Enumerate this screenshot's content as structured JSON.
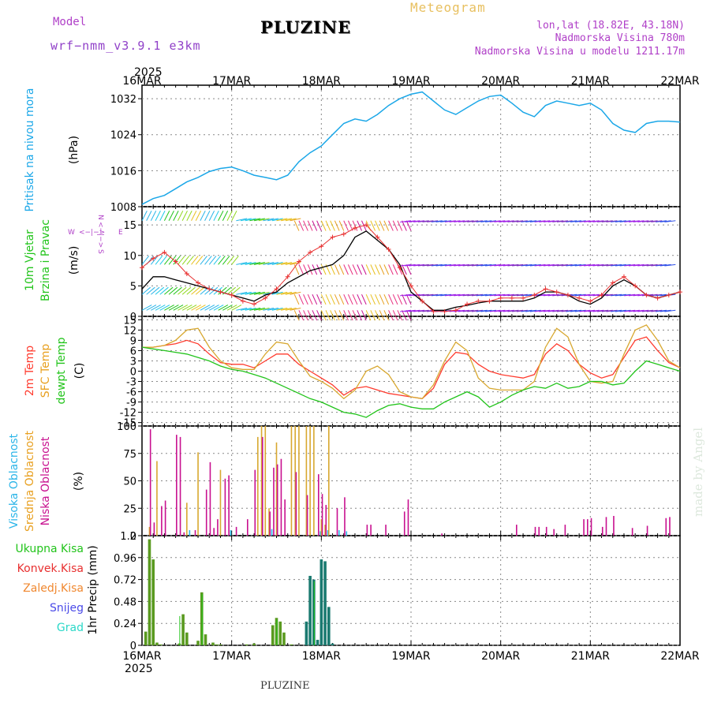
{
  "header": {
    "title": "PLUZINE",
    "model_label": "Model",
    "model_name": "wrf−nmm_v3.9.1  e3km",
    "meteogram": "Meteogram",
    "lonlat": "lon,lat (18.82E, 43.18N)",
    "elevation": "Nadmorska Visina 780m",
    "model_elevation": "Nadmorska Visina u modelu 1211.17m",
    "footer": "PLUZINE",
    "made_by": "made by Angel"
  },
  "chart_data": [
    {
      "type": "line",
      "title": "Pritisak na nivou mora",
      "ylabel": "(hPa)",
      "ylim": [
        1008,
        1035
      ],
      "yticks": [
        1008,
        1016,
        1024,
        1032
      ],
      "x_ticks": [
        "16MAR",
        "17MAR",
        "18MAR",
        "19MAR",
        "20MAR",
        "21MAR",
        "22MAR"
      ],
      "x_year": "2025",
      "x_range_hours": [
        0,
        144
      ],
      "series": [
        {
          "name": "Pritisak",
          "color": "#1ba7e8",
          "x": [
            0,
            3,
            6,
            9,
            12,
            15,
            18,
            21,
            24,
            27,
            30,
            33,
            36,
            39,
            42,
            45,
            48,
            51,
            54,
            57,
            60,
            63,
            66,
            69,
            72,
            75,
            78,
            81,
            84,
            87,
            90,
            93,
            96,
            99,
            102,
            105,
            108,
            111,
            114,
            117,
            120,
            123,
            126,
            129,
            132,
            135,
            138,
            141,
            144
          ],
          "y": [
            1008.5,
            1009.8,
            1010.5,
            1012.0,
            1013.5,
            1014.5,
            1015.8,
            1016.5,
            1016.8,
            1016.0,
            1015.0,
            1014.5,
            1014.0,
            1015.0,
            1018.0,
            1020.0,
            1021.5,
            1024.0,
            1026.5,
            1027.5,
            1027.0,
            1028.5,
            1030.5,
            1032.0,
            1033.0,
            1033.5,
            1031.5,
            1029.5,
            1028.5,
            1030.0,
            1031.5,
            1032.5,
            1032.8,
            1031.0,
            1029.0,
            1028.0,
            1030.5,
            1031.5,
            1031.0,
            1030.5,
            1031.0,
            1029.5,
            1026.5,
            1025.0,
            1024.5,
            1026.5,
            1027.0,
            1027.0,
            1026.8
          ]
        }
      ]
    },
    {
      "type": "line",
      "title": "10m Vjetar Brzina i Pravac",
      "ylabel": "(m/s)",
      "ylim": [
        0,
        18
      ],
      "yticks": [
        0,
        5,
        10,
        15
      ],
      "compass": "N <-|-> S, W <-|-> E",
      "series": [
        {
          "name": "Brzina vjetra",
          "color": "#000000",
          "x": [
            0,
            3,
            6,
            9,
            12,
            15,
            18,
            21,
            24,
            27,
            30,
            33,
            36,
            39,
            42,
            45,
            48,
            51,
            54,
            57,
            60,
            63,
            66,
            69,
            72,
            75,
            78,
            81,
            84,
            87,
            90,
            93,
            96,
            99,
            102,
            105,
            108,
            111,
            114,
            117,
            120,
            123,
            126,
            129,
            132,
            135,
            138,
            141,
            144
          ],
          "y": [
            4.5,
            6.5,
            6.5,
            6.0,
            5.5,
            5.0,
            4.5,
            4.0,
            3.5,
            3.0,
            2.5,
            3.5,
            4.0,
            5.5,
            6.5,
            7.5,
            8.0,
            8.5,
            10.0,
            13.0,
            14.0,
            12.5,
            11.0,
            8.5,
            4.0,
            2.5,
            1.0,
            1.0,
            1.5,
            1.8,
            2.2,
            2.5,
            2.5,
            2.5,
            2.5,
            3.0,
            4.0,
            4.0,
            3.5,
            2.5,
            2.0,
            3.0,
            5.0,
            6.0,
            5.0,
            3.5,
            3.0,
            3.5,
            4.0
          ]
        },
        {
          "name": "Udari vjetra",
          "color": "#e83030",
          "x": [
            0,
            3,
            6,
            9,
            12,
            15,
            18,
            21,
            24,
            27,
            30,
            33,
            36,
            39,
            42,
            45,
            48,
            51,
            54,
            57,
            60,
            63,
            66,
            69,
            72,
            75,
            78,
            81,
            84,
            87,
            90,
            93,
            96,
            99,
            102,
            105,
            108,
            111,
            114,
            117,
            120,
            123,
            126,
            129,
            132,
            135,
            138,
            141,
            144
          ],
          "y": [
            8.0,
            9.5,
            10.5,
            9.0,
            7.0,
            5.5,
            4.5,
            4.0,
            3.5,
            2.5,
            2.0,
            3.0,
            4.5,
            6.5,
            9.0,
            10.5,
            11.5,
            13.0,
            13.5,
            14.5,
            15.0,
            13.0,
            11.0,
            8.0,
            5.0,
            2.5,
            0.8,
            0.8,
            1.0,
            2.0,
            2.5,
            2.5,
            3.0,
            3.0,
            3.0,
            3.5,
            4.5,
            4.0,
            3.5,
            3.0,
            2.5,
            3.5,
            5.5,
            6.5,
            5.0,
            3.5,
            3.0,
            3.5,
            4.0
          ]
        }
      ]
    },
    {
      "type": "line",
      "title": "2m Temp / SFC Temp / dewpt Temp",
      "ylabel": "(C)",
      "ylim": [
        -16,
        16
      ],
      "yticks": [
        -15,
        -12,
        -9,
        -6,
        -3,
        0,
        3,
        6,
        9,
        12,
        15
      ],
      "series": [
        {
          "name": "2m Temp",
          "color": "#ff3b2e",
          "x": [
            0,
            3,
            6,
            9,
            12,
            15,
            18,
            21,
            24,
            27,
            30,
            33,
            36,
            39,
            42,
            45,
            48,
            51,
            54,
            57,
            60,
            63,
            66,
            69,
            72,
            75,
            78,
            81,
            84,
            87,
            90,
            93,
            96,
            99,
            102,
            105,
            108,
            111,
            114,
            117,
            120,
            123,
            126,
            129,
            132,
            135,
            138,
            141,
            144
          ],
          "y": [
            7.0,
            7.0,
            7.5,
            8.0,
            9.0,
            8.0,
            5.0,
            2.5,
            2.0,
            2.0,
            1.0,
            3.0,
            5.0,
            5.0,
            2.0,
            0.0,
            -2.0,
            -4.0,
            -7.0,
            -5.0,
            -4.5,
            -5.5,
            -6.5,
            -7.0,
            -7.5,
            -8.0,
            -5.0,
            2.0,
            5.5,
            5.0,
            2.0,
            0.0,
            -1.0,
            -1.5,
            -2.0,
            -1.0,
            5.0,
            8.0,
            6.0,
            2.0,
            -0.5,
            -2.0,
            -1.0,
            4.0,
            9.0,
            10.0,
            6.0,
            2.5,
            1.0
          ]
        },
        {
          "name": "SFC Temp",
          "color": "#d8a830",
          "x": [
            0,
            3,
            6,
            9,
            12,
            15,
            18,
            21,
            24,
            27,
            30,
            33,
            36,
            39,
            42,
            45,
            48,
            51,
            54,
            57,
            60,
            63,
            66,
            69,
            72,
            75,
            78,
            81,
            84,
            87,
            90,
            93,
            96,
            99,
            102,
            105,
            108,
            111,
            114,
            117,
            120,
            123,
            126,
            129,
            132,
            135,
            138,
            141,
            144
          ],
          "y": [
            7.0,
            7.0,
            7.5,
            9.0,
            12.0,
            12.5,
            7.0,
            3.0,
            1.0,
            0.5,
            0.5,
            5.0,
            8.5,
            8.0,
            3.0,
            -1.5,
            -3.0,
            -5.0,
            -8.0,
            -5.5,
            0.0,
            1.5,
            -1.0,
            -6.0,
            -7.5,
            -8.0,
            -4.0,
            3.0,
            8.5,
            6.0,
            -2.0,
            -5.0,
            -5.5,
            -5.5,
            -5.5,
            -3.0,
            7.0,
            12.5,
            10.0,
            2.0,
            -3.0,
            -3.5,
            -3.0,
            5.0,
            12.0,
            13.5,
            9.0,
            3.0,
            1.0
          ]
        },
        {
          "name": "dewpt Temp",
          "color": "#22c41b",
          "x": [
            0,
            3,
            6,
            9,
            12,
            15,
            18,
            21,
            24,
            27,
            30,
            33,
            36,
            39,
            42,
            45,
            48,
            51,
            54,
            57,
            60,
            63,
            66,
            69,
            72,
            75,
            78,
            81,
            84,
            87,
            90,
            93,
            96,
            99,
            102,
            105,
            108,
            111,
            114,
            117,
            120,
            123,
            126,
            129,
            132,
            135,
            138,
            141,
            144
          ],
          "y": [
            7.0,
            6.5,
            6.0,
            5.5,
            5.0,
            4.0,
            3.0,
            1.5,
            0.5,
            0.0,
            -1.0,
            -2.0,
            -3.5,
            -5.0,
            -6.5,
            -8.0,
            -9.0,
            -10.5,
            -12.0,
            -12.5,
            -13.5,
            -11.5,
            -10.0,
            -9.5,
            -10.5,
            -11.0,
            -11.0,
            -9.0,
            -7.5,
            -6.0,
            -7.5,
            -10.5,
            -9.0,
            -7.0,
            -5.5,
            -4.5,
            -5.0,
            -3.5,
            -5.0,
            -4.5,
            -3.0,
            -3.0,
            -4.0,
            -3.5,
            0.0,
            3.0,
            2.0,
            1.0,
            0.0
          ]
        }
      ]
    },
    {
      "type": "bar",
      "title": "Visoka Oblacnost / Srednja Oblacnost / Niska Oblacnost",
      "ylabel": "(%)",
      "ylim": [
        0,
        100
      ],
      "yticks": [
        0,
        25,
        50,
        75,
        100
      ],
      "series": [
        {
          "name": "Visoka Oblacnost",
          "color": "#2bb5e8",
          "x": [
            13,
            24,
            35,
            48,
            50,
            53,
            55
          ],
          "values": [
            5,
            5,
            6,
            4,
            5,
            5,
            4
          ]
        },
        {
          "name": "Srednja Oblacnost",
          "color": "#d8a830",
          "x": [
            2,
            4,
            12,
            15,
            21,
            31,
            32,
            33,
            34,
            36,
            40,
            41,
            42,
            44,
            45,
            46,
            48,
            49,
            50
          ],
          "values": [
            8,
            68,
            30,
            76,
            60,
            90,
            100,
            100,
            25,
            85,
            100,
            100,
            100,
            100,
            100,
            100,
            15,
            10,
            100
          ]
        },
        {
          "name": "Niska Oblacnost",
          "color": "#c8108f",
          "x": [
            2,
            3,
            5,
            6,
            9,
            10,
            11,
            14,
            17,
            18,
            19,
            20,
            22,
            23,
            25,
            28,
            30,
            32,
            34,
            35,
            36,
            37,
            38,
            41,
            44,
            47,
            48,
            49,
            52,
            54,
            60,
            61,
            65,
            70,
            71,
            80,
            100,
            105,
            106,
            108,
            110,
            113,
            118,
            119,
            120,
            123,
            124,
            126,
            131,
            135,
            140,
            141
          ],
          "values": [
            97,
            12,
            27,
            32,
            92,
            90,
            3,
            5,
            42,
            67,
            7,
            15,
            52,
            55,
            8,
            15,
            60,
            90,
            22,
            62,
            65,
            70,
            33,
            58,
            37,
            56,
            38,
            28,
            25,
            35,
            10,
            10,
            10,
            22,
            33,
            2,
            10,
            8,
            8,
            8,
            6,
            10,
            15,
            15,
            16,
            8,
            17,
            18,
            7,
            9,
            16,
            17
          ]
        }
      ]
    },
    {
      "type": "bar",
      "title": "1hr Precip",
      "ylabel": "1hr Precip (mm)",
      "ylim": [
        0,
        1.2
      ],
      "yticks": [
        0,
        0.24,
        0.48,
        0.72,
        0.96,
        1.2
      ],
      "legend": [
        "Ukupna Kisa",
        "Konvek.Kisa",
        "Zaledj.Kisa",
        "Snijeg",
        "Grad"
      ],
      "legend_colors": [
        "#22c41b",
        "#e83030",
        "#f08830",
        "#4a4ae8",
        "#2bd8c8"
      ],
      "series": [
        {
          "name": "Ukupna Kisa",
          "color": "#5a9a20",
          "x": [
            1,
            2,
            3,
            4,
            5,
            10,
            11,
            12,
            15,
            16,
            17,
            19,
            20,
            21,
            28,
            30,
            35,
            36,
            37,
            38,
            40
          ],
          "values": [
            0.15,
            1.16,
            0.94,
            0.03,
            0.01,
            0.02,
            0.34,
            0.14,
            0.05,
            0.58,
            0.12,
            0.03,
            0.01,
            0.01,
            0.01,
            0.02,
            0.22,
            0.3,
            0.26,
            0.14,
            0.01
          ]
        },
        {
          "name": "Snijeg",
          "color": "#1a7a70",
          "x": [
            44,
            45,
            46,
            47,
            48,
            49,
            50,
            51
          ],
          "values": [
            0.26,
            0.76,
            0.72,
            0.06,
            0.94,
            0.92,
            0.42,
            0.02
          ]
        }
      ]
    }
  ],
  "panel_labels": {
    "pressure": [
      "Pritisak  na  nivou  mora",
      "(hPa)"
    ],
    "wind": [
      "10m  Vjetar",
      "Brzina  i  Pravac",
      "(m/s)"
    ],
    "temp": [
      "2m  Temp",
      "SFC  Temp",
      "dewpt  Temp",
      "(C)"
    ],
    "cloud": [
      "Visoka  Oblacnost",
      "Srednja  Oblacnost",
      "Niska  Oblacnost",
      "(%)"
    ],
    "precip": [
      "Ukupna  Kisa",
      "Konvek.Kisa",
      "Zaledj.Kisa",
      "Snijeg",
      "Grad",
      "1hr  Precip  (mm)"
    ]
  }
}
